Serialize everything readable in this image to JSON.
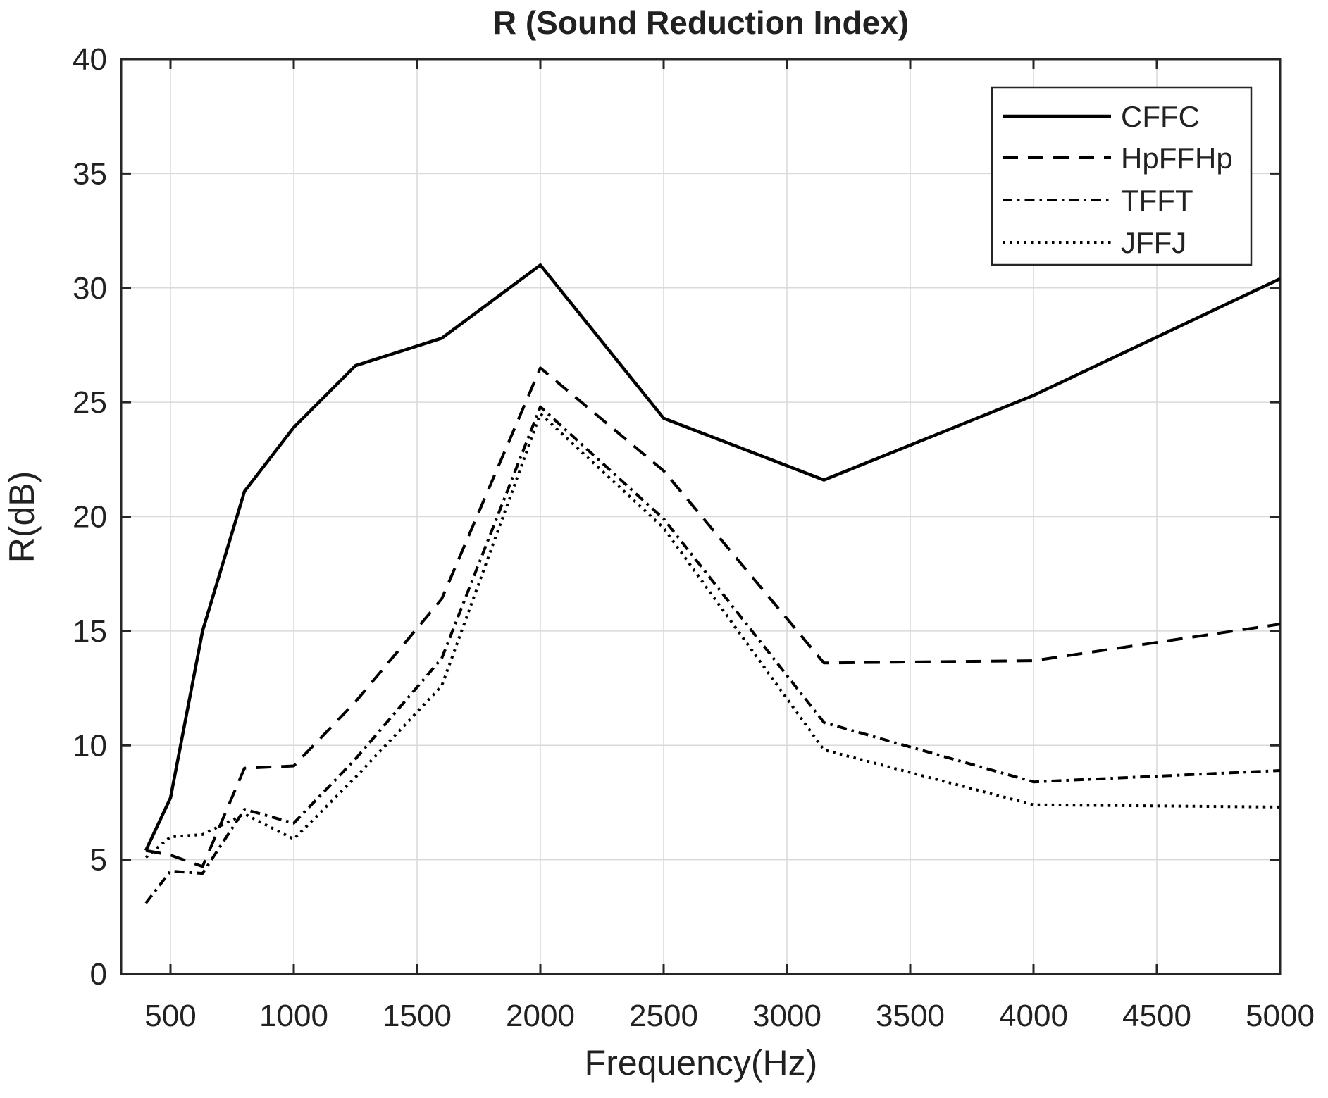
{
  "title": "R (Sound Reduction Index)",
  "chart_data": {
    "type": "line",
    "title": "R (Sound Reduction Index)",
    "xlabel": "Frequency(Hz)",
    "ylabel": "R(dB)",
    "xlim": [
      300,
      5000
    ],
    "ylim": [
      0,
      40
    ],
    "x_ticks": [
      500,
      1000,
      1500,
      2000,
      2500,
      3000,
      3500,
      4000,
      4500,
      5000
    ],
    "y_ticks": [
      0,
      5,
      10,
      15,
      20,
      25,
      30,
      35,
      40
    ],
    "grid": true,
    "legend_position": "top-right",
    "line_color": "#000000",
    "grid_color": "#d9d9d9",
    "axis_color": "#262626",
    "x": [
      400,
      500,
      630,
      800,
      1000,
      1250,
      1600,
      2000,
      2500,
      3150,
      4000,
      5000
    ],
    "series": [
      {
        "name": "CFFC",
        "style": "solid",
        "values": [
          5.4,
          7.7,
          15.0,
          21.1,
          23.9,
          26.6,
          27.8,
          31.0,
          24.3,
          21.6,
          25.3,
          30.4
        ]
      },
      {
        "name": "HpFFHp",
        "style": "dashed",
        "values": [
          5.4,
          5.2,
          4.7,
          9.0,
          9.1,
          11.9,
          16.4,
          26.5,
          22.0,
          13.6,
          13.7,
          15.3
        ]
      },
      {
        "name": "TFFT",
        "style": "dashdot",
        "values": [
          3.1,
          4.5,
          4.4,
          7.2,
          6.6,
          9.4,
          13.8,
          24.8,
          19.9,
          11.0,
          8.4,
          8.9
        ]
      },
      {
        "name": "JFFJ",
        "style": "dotted",
        "values": [
          5.1,
          6.0,
          6.1,
          7.0,
          5.9,
          8.6,
          12.6,
          24.5,
          19.5,
          9.8,
          7.4,
          7.3
        ]
      }
    ]
  }
}
